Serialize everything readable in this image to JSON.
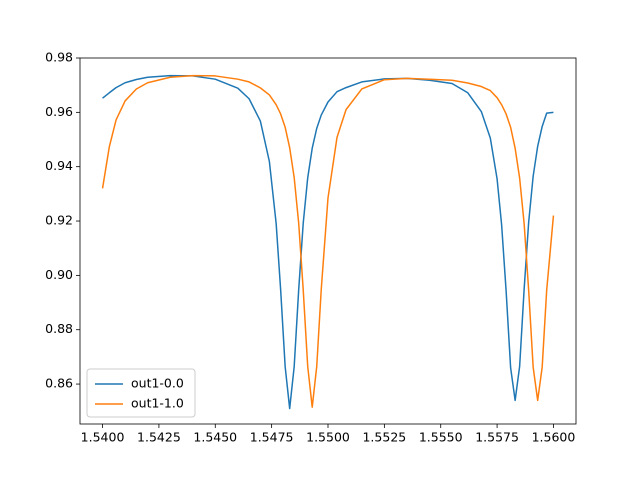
{
  "chart_data": {
    "type": "line",
    "x": [
      1.54,
      1.5403,
      1.5406,
      1.541,
      1.5415,
      1.542,
      1.543,
      1.544,
      1.545,
      1.546,
      1.5465,
      1.547,
      1.5474,
      1.5477,
      1.5479,
      1.5481,
      1.5483,
      1.5485,
      1.5487,
      1.5489,
      1.5491,
      1.5493,
      1.5495,
      1.5497,
      1.55,
      1.5504,
      1.5508,
      1.5515,
      1.5525,
      1.5535,
      1.5545,
      1.5555,
      1.5562,
      1.5568,
      1.5572,
      1.5575,
      1.5577,
      1.5579,
      1.5581,
      1.5583,
      1.5585,
      1.5587,
      1.5589,
      1.5591,
      1.5593,
      1.5595,
      1.5597,
      1.56
    ],
    "series": [
      {
        "name": "out1-0.0",
        "color": "#1f77b4",
        "values": [
          0.9652,
          0.9672,
          0.9691,
          0.9709,
          0.9721,
          0.9729,
          0.9735,
          0.9734,
          0.9722,
          0.9689,
          0.965,
          0.9568,
          0.9419,
          0.9191,
          0.8947,
          0.8664,
          0.851,
          0.8664,
          0.8947,
          0.9191,
          0.9359,
          0.9468,
          0.9541,
          0.959,
          0.9638,
          0.9676,
          0.9691,
          0.9712,
          0.9723,
          0.9725,
          0.9718,
          0.9706,
          0.9672,
          0.9603,
          0.9505,
          0.9355,
          0.9187,
          0.8943,
          0.866,
          0.854,
          0.8665,
          0.895,
          0.9195,
          0.9365,
          0.9475,
          0.9548,
          0.9597,
          0.96
        ]
      },
      {
        "name": "out1-1.0",
        "color": "#ff7f0e",
        "values": [
          0.932,
          0.9473,
          0.9572,
          0.9642,
          0.9686,
          0.9709,
          0.9729,
          0.9735,
          0.9734,
          0.9722,
          0.9712,
          0.969,
          0.9664,
          0.9628,
          0.9594,
          0.9545,
          0.947,
          0.936,
          0.9192,
          0.8948,
          0.8665,
          0.8515,
          0.8665,
          0.8948,
          0.9285,
          0.9508,
          0.961,
          0.9686,
          0.972,
          0.9725,
          0.9722,
          0.9718,
          0.9708,
          0.9695,
          0.968,
          0.9654,
          0.9628,
          0.9594,
          0.9545,
          0.9468,
          0.9358,
          0.919,
          0.8946,
          0.8662,
          0.854,
          0.8662,
          0.8946,
          0.922
        ]
      }
    ],
    "xlim": [
      1.539,
      1.561
    ],
    "ylim": [
      0.8453,
      0.98
    ],
    "xticks": [
      {
        "value": 1.54,
        "label": "1.5400"
      },
      {
        "value": 1.5425,
        "label": "1.5425"
      },
      {
        "value": 1.545,
        "label": "1.5450"
      },
      {
        "value": 1.5475,
        "label": "1.5475"
      },
      {
        "value": 1.55,
        "label": "1.5500"
      },
      {
        "value": 1.5525,
        "label": "1.5525"
      },
      {
        "value": 1.555,
        "label": "1.5550"
      },
      {
        "value": 1.5575,
        "label": "1.5575"
      },
      {
        "value": 1.56,
        "label": "1.5600"
      }
    ],
    "yticks": [
      0.86,
      0.88,
      {
        "value": 0.9,
        "label": "0.90"
      },
      0.92,
      0.94,
      0.96,
      0.98
    ],
    "grid": false,
    "legend": "lower left"
  }
}
